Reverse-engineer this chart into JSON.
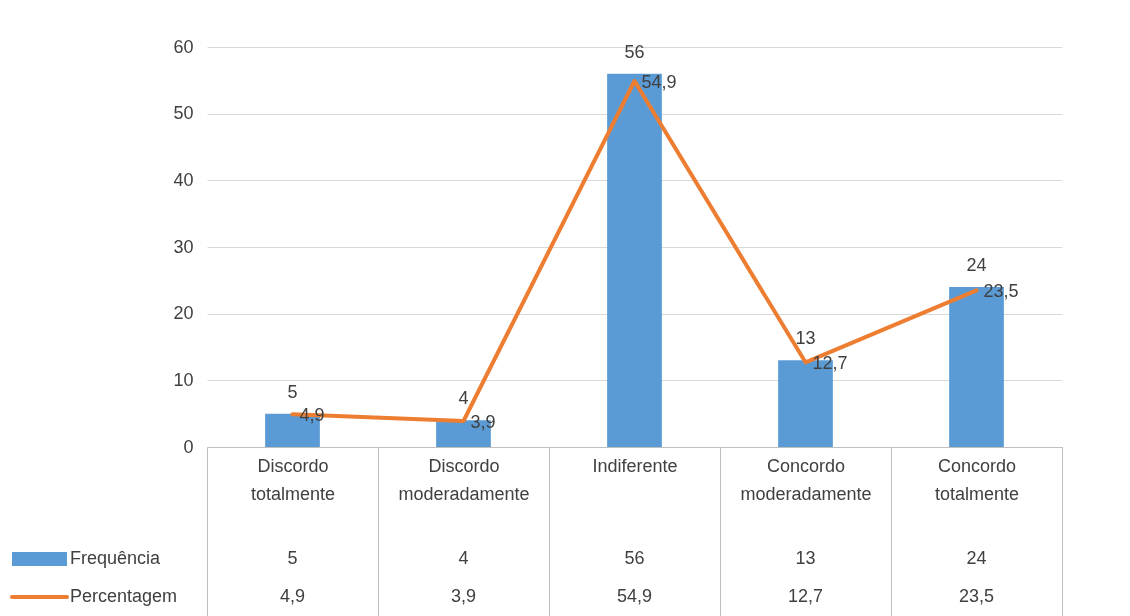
{
  "chart_data": {
    "type": "bar",
    "categories": [
      "Discordo totalmente",
      "Discordo moderadamente",
      "Indiferente",
      "Concordo moderadamente",
      "Concordo totalmente"
    ],
    "series": [
      {
        "name": "Frequência",
        "color": "#5b9bd5",
        "values": [
          5,
          4,
          56,
          13,
          24
        ],
        "value_labels": [
          "5",
          "4",
          "56",
          "13",
          "24"
        ]
      },
      {
        "name": "Percentagem",
        "type": "line",
        "color": "#ed7d31",
        "values": [
          4.9,
          3.9,
          54.9,
          12.7,
          23.5
        ],
        "value_labels": [
          "4,9",
          "3,9",
          "54,9",
          "12,7",
          "23,5"
        ]
      }
    ],
    "ylim": [
      0,
      60
    ],
    "yticks": [
      0,
      10,
      20,
      30,
      40,
      50,
      60
    ],
    "grid": "y",
    "legend": "bottom",
    "marker": "none"
  }
}
